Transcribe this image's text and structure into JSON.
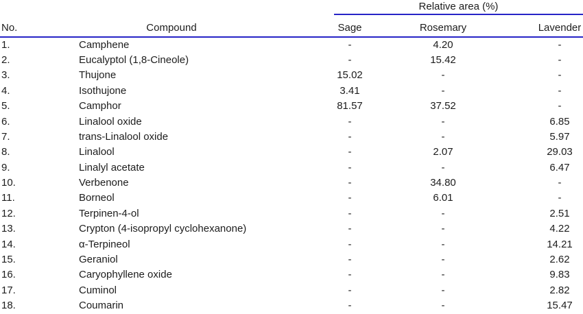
{
  "table": {
    "span_header": "Relative area (%)",
    "columns": [
      "No.",
      "Compound",
      "Sage",
      "Rosemary",
      "Lavender"
    ],
    "rows": [
      {
        "no": "1.",
        "compound": "Camphene",
        "sage": "-",
        "rosemary": "4.20",
        "lavender": "-"
      },
      {
        "no": "2.",
        "compound": "Eucalyptol (1,8-Cineole)",
        "sage": "-",
        "rosemary": "15.42",
        "lavender": "-"
      },
      {
        "no": "3.",
        "compound": "Thujone",
        "sage": "15.02",
        "rosemary": "-",
        "lavender": "-"
      },
      {
        "no": "4.",
        "compound": "Isothujone",
        "sage": "3.41",
        "rosemary": "-",
        "lavender": "-"
      },
      {
        "no": "5.",
        "compound": "Camphor",
        "sage": "81.57",
        "rosemary": "37.52",
        "lavender": "-"
      },
      {
        "no": "6.",
        "compound": "Linalool oxide",
        "sage": "-",
        "rosemary": "-",
        "lavender": "6.85"
      },
      {
        "no": "7.",
        "compound": "trans-Linalool oxide",
        "sage": "-",
        "rosemary": "-",
        "lavender": "5.97"
      },
      {
        "no": "8.",
        "compound": "Linalool",
        "sage": "-",
        "rosemary": "2.07",
        "lavender": "29.03"
      },
      {
        "no": "9.",
        "compound": "Linalyl acetate",
        "sage": "-",
        "rosemary": "-",
        "lavender": "6.47"
      },
      {
        "no": "10.",
        "compound": "Verbenone",
        "sage": "-",
        "rosemary": "34.80",
        "lavender": "-"
      },
      {
        "no": "11.",
        "compound": "Borneol",
        "sage": "-",
        "rosemary": "6.01",
        "lavender": "-"
      },
      {
        "no": "12.",
        "compound": "Terpinen-4-ol",
        "sage": "-",
        "rosemary": "-",
        "lavender": "2.51"
      },
      {
        "no": "13.",
        "compound": "Crypton (4-isopropyl cyclohexanone)",
        "sage": "-",
        "rosemary": "-",
        "lavender": "4.22"
      },
      {
        "no": "14.",
        "compound": "α-Terpineol",
        "sage": "-",
        "rosemary": "-",
        "lavender": "14.21"
      },
      {
        "no": "15.",
        "compound": "Geraniol",
        "sage": "-",
        "rosemary": "-",
        "lavender": "2.62"
      },
      {
        "no": "16.",
        "compound": "Caryophyllene oxide",
        "sage": "-",
        "rosemary": "-",
        "lavender": "9.83"
      },
      {
        "no": "17.",
        "compound": "Cuminol",
        "sage": "-",
        "rosemary": "-",
        "lavender": "2.82"
      },
      {
        "no": "18.",
        "compound": "Coumarin",
        "sage": "-",
        "rosemary": "-",
        "lavender": "15.47"
      }
    ]
  },
  "colors": {
    "rule_blue": "#2623c6",
    "text": "#1c1c1c"
  }
}
